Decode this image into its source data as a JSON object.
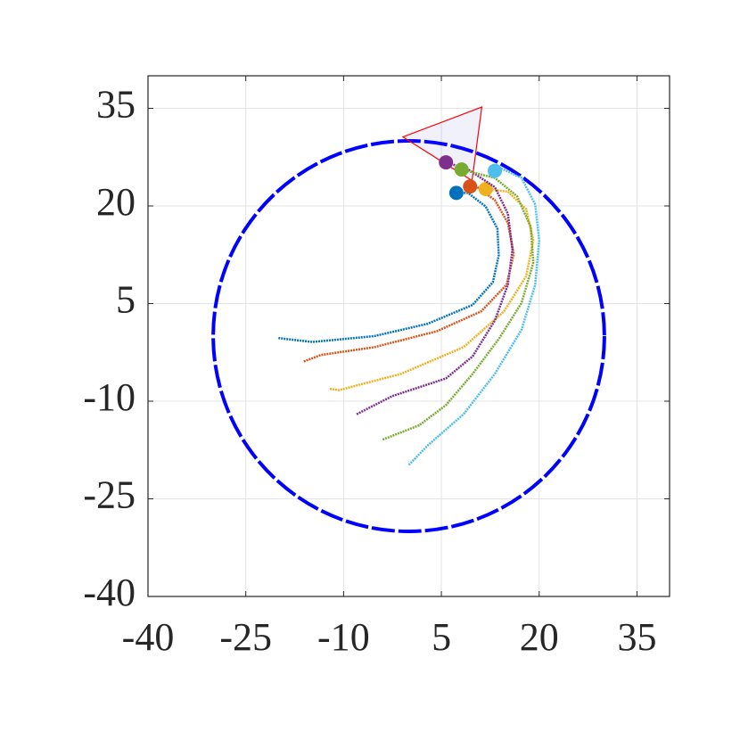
{
  "chart_data": {
    "type": "trajectory",
    "xlim": [
      -40,
      40
    ],
    "ylim": [
      -40,
      40
    ],
    "xticks": [
      -40,
      -25,
      -10,
      5,
      20,
      35
    ],
    "yticks": [
      -40,
      -25,
      -10,
      5,
      20,
      35
    ],
    "grid": true,
    "boundary": {
      "center": [
        0,
        0
      ],
      "radius": 30,
      "color": "#0000ff"
    },
    "region": {
      "x": [
        -0.9,
        11.2,
        9.7
      ],
      "y": [
        30.6,
        35.2,
        23.9
      ],
      "color": "#ff0000"
    },
    "series": [
      {
        "color": "#0072bd",
        "x": [
          -20,
          -14.8,
          -5.3,
          2.9,
          9.8,
          12.9,
          13.8,
          13.6,
          11.8,
          9.1,
          7.3
        ],
        "y": [
          -0.3,
          -0.9,
          0,
          1.9,
          4.8,
          8.3,
          12.4,
          16.5,
          19.9,
          22,
          22.0
        ]
      },
      {
        "color": "#d95319",
        "x": [
          -16.1,
          -13.5,
          -5.3,
          4.3,
          11.1,
          15.0,
          16.1,
          15.2,
          13.2,
          10.5,
          9.4
        ],
        "y": [
          -3.9,
          -2.9,
          -1.7,
          0.75,
          3.8,
          7.9,
          12.6,
          17.4,
          20.9,
          22.9,
          23.0
        ]
      },
      {
        "color": "#edb120",
        "x": [
          -12.1,
          -10.7,
          -1.2,
          8.4,
          14.6,
          18.0,
          19.1,
          18.0,
          15.2,
          11.8
        ],
        "y": [
          -8.1,
          -8.3,
          -5.8,
          -1.7,
          3.8,
          9.2,
          14.7,
          19.5,
          22.2,
          22.6
        ]
      },
      {
        "color": "#7e2f8e",
        "x": [
          -8.0,
          -2.5,
          5.7,
          9.8,
          13.2,
          15.2,
          15.9,
          15.2,
          13.2,
          9.1,
          5.7
        ],
        "y": [
          -12.0,
          -9.2,
          -6.5,
          -3.1,
          2.4,
          7.9,
          13.3,
          18.8,
          22.9,
          25.6,
          26.7
        ]
      },
      {
        "color": "#77ac30",
        "x": [
          -4.0,
          1.6,
          5.7,
          9.8,
          13.9,
          17.3,
          19.1,
          18.7,
          16.6,
          13.2,
          8.1
        ],
        "y": [
          -15.9,
          -13.7,
          -10.6,
          -5.8,
          -0.3,
          5.1,
          11.3,
          16.8,
          21.5,
          24.3,
          25.6
        ]
      },
      {
        "color": "#4dbeee",
        "x": [
          0,
          2.9,
          8.4,
          13.2,
          17.3,
          19.4,
          20.0,
          19.4,
          17.3,
          13.9,
          13.2
        ],
        "y": [
          -19.8,
          -16.8,
          -12.0,
          -5.8,
          1.0,
          7.9,
          14.7,
          20.2,
          24.3,
          25.9,
          25.4
        ]
      }
    ]
  }
}
